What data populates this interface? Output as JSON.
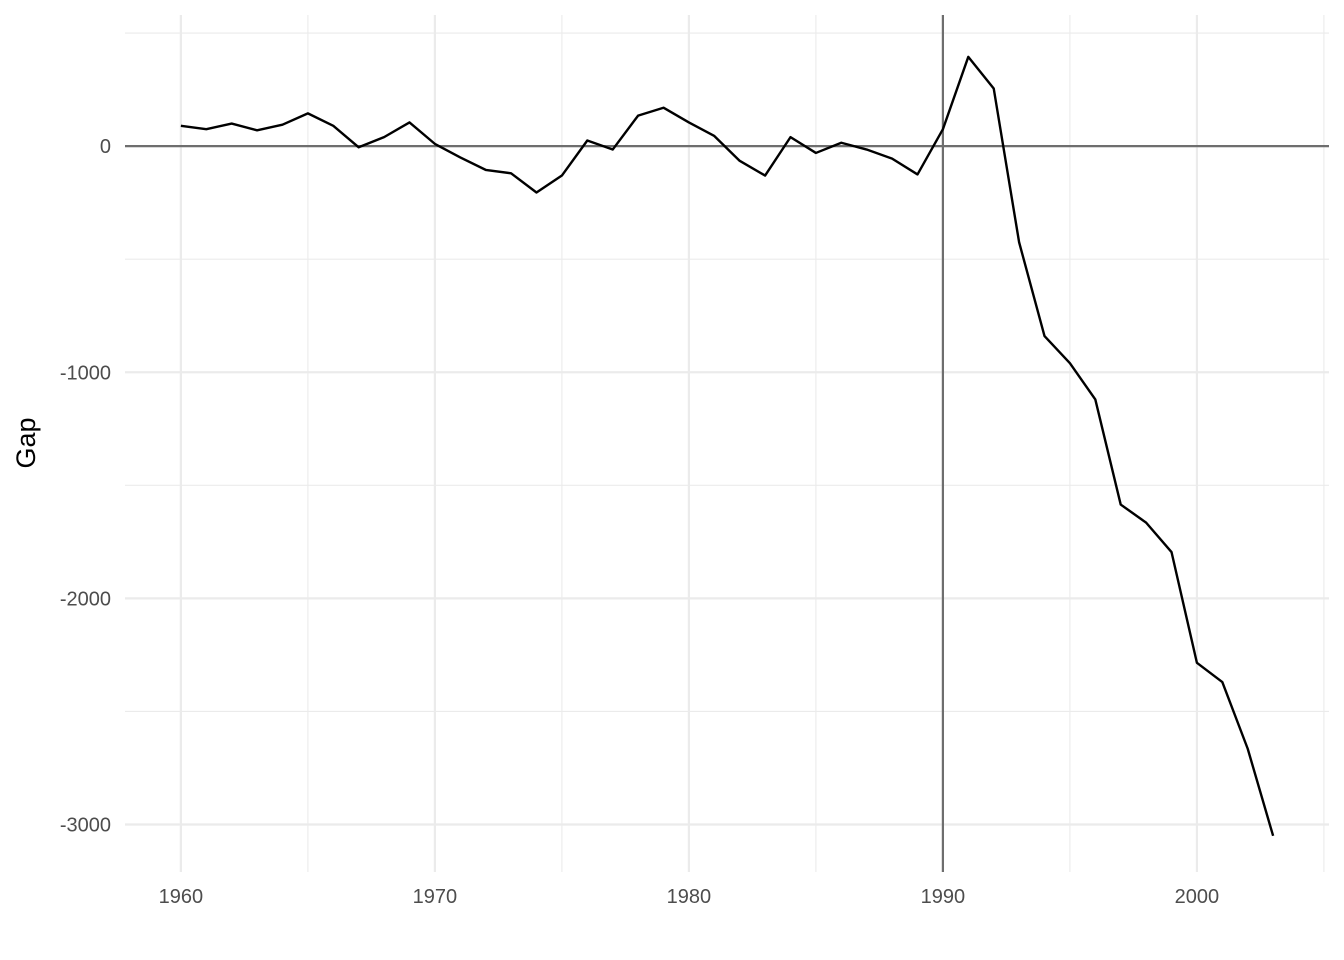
{
  "chart_data": {
    "type": "line",
    "title": "",
    "xlabel": "",
    "ylabel": "Gap",
    "xlim": [
      1957.8,
      2005.2
    ],
    "ylim": [
      -3210,
      580
    ],
    "x_ticks": [
      1960,
      1970,
      1980,
      1990,
      2000
    ],
    "x_tick_labels": [
      "1960",
      "1970",
      "1980",
      "1990",
      "2000"
    ],
    "y_ticks": [
      0,
      -1000,
      -2000,
      -3000
    ],
    "y_tick_labels": [
      "0",
      "-1000",
      "-2000",
      "-3000"
    ],
    "x_minor_ticks": [
      1965,
      1975,
      1985,
      1995,
      2005
    ],
    "y_minor_ticks": [
      500,
      -500,
      -1500,
      -2500
    ],
    "reference_lines": {
      "horizontal": 0,
      "vertical": 1990
    },
    "grid": true,
    "series": [
      {
        "name": "Gap",
        "x": [
          1960,
          1961,
          1962,
          1963,
          1964,
          1965,
          1966,
          1967,
          1968,
          1969,
          1970,
          1971,
          1972,
          1973,
          1974,
          1975,
          1976,
          1977,
          1978,
          1979,
          1980,
          1981,
          1982,
          1983,
          1984,
          1985,
          1986,
          1987,
          1988,
          1989,
          1990,
          1991,
          1992,
          1993,
          1994,
          1995,
          1996,
          1997,
          1998,
          1999,
          2000,
          2001,
          2002,
          2003
        ],
        "values": [
          90,
          75,
          100,
          70,
          95,
          145,
          90,
          -5,
          40,
          105,
          10,
          -50,
          -105,
          -120,
          -205,
          -130,
          25,
          -15,
          135,
          170,
          105,
          45,
          -65,
          -130,
          40,
          -30,
          15,
          -15,
          -55,
          -125,
          75,
          395,
          255,
          -425,
          -840,
          -960,
          -1120,
          -1585,
          -1665,
          -1795,
          -2285,
          -2370,
          -2665,
          -3050
        ],
        "color": "#000000"
      }
    ]
  }
}
